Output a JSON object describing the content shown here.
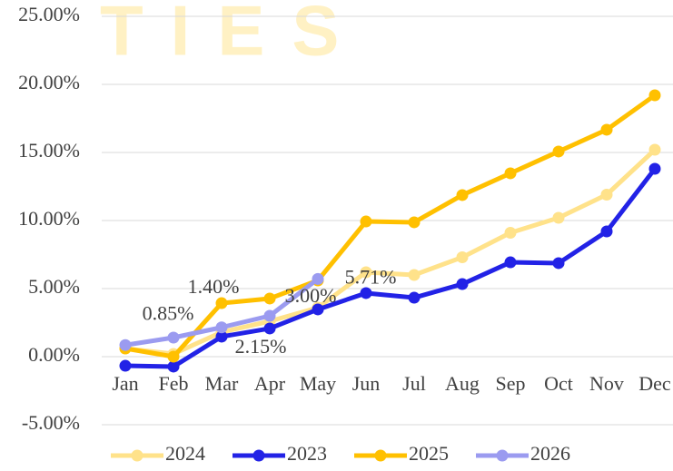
{
  "chart_data": {
    "type": "line",
    "watermark": "TIES",
    "categories": [
      "Jan",
      "Feb",
      "Mar",
      "Apr",
      "May",
      "Jun",
      "Jul",
      "Aug",
      "Sep",
      "Oct",
      "Nov",
      "Dec"
    ],
    "series": [
      {
        "name": "2024",
        "color": "#FFE28A",
        "values": [
          0.6,
          0.2,
          1.8,
          2.6,
          3.6,
          6.2,
          6.0,
          7.3,
          9.1,
          10.2,
          11.9,
          15.2
        ]
      },
      {
        "name": "2023",
        "color": "#2222E6",
        "values": [
          -0.67,
          -0.73,
          1.47,
          2.07,
          3.47,
          4.67,
          4.33,
          5.33,
          6.93,
          6.87,
          9.2,
          13.8
        ]
      },
      {
        "name": "2025",
        "color": "#FFC000",
        "values": [
          0.6,
          0.0,
          3.93,
          4.27,
          5.6,
          9.93,
          9.87,
          11.87,
          13.47,
          15.07,
          16.67,
          19.2
        ]
      },
      {
        "name": "2026",
        "color": "#9B9BF0",
        "values": [
          0.85,
          1.4,
          2.15,
          3.0,
          5.71,
          null,
          null,
          null,
          null,
          null,
          null,
          null
        ],
        "value_labels": [
          "0.85%",
          "1.40%",
          "2.15%",
          "3.00%",
          "5.71%",
          null,
          null,
          null,
          null,
          null,
          null,
          null
        ]
      }
    ],
    "ylim": [
      -5,
      25
    ],
    "yticks": [
      {
        "value": -5,
        "label": "-5.00%"
      },
      {
        "value": 0,
        "label": "0.00%"
      },
      {
        "value": 5,
        "label": "5.00%"
      },
      {
        "value": 10,
        "label": "10.00%"
      },
      {
        "value": 15,
        "label": "15.00%"
      },
      {
        "value": 20,
        "label": "20.00%"
      },
      {
        "value": 25,
        "label": "25.00%"
      }
    ],
    "grid": true,
    "legend": "bottom"
  }
}
